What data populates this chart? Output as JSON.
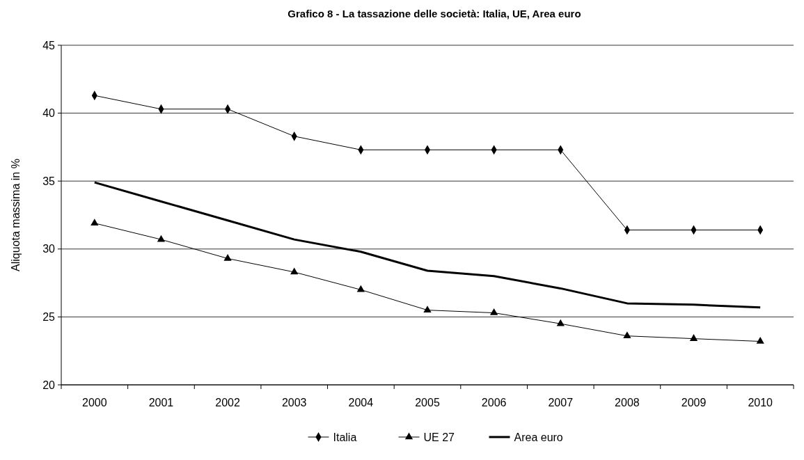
{
  "chart_data": {
    "type": "line",
    "title": "Grafico 8 - La tassazione delle società: Italia, UE, Area euro",
    "ylabel": "Aliquota massima in %",
    "categories": [
      "2000",
      "2001",
      "2002",
      "2003",
      "2004",
      "2005",
      "2006",
      "2007",
      "2008",
      "2009",
      "2010"
    ],
    "ylim": [
      20,
      45
    ],
    "yticks": [
      20,
      25,
      30,
      35,
      40,
      45
    ],
    "grid": "y",
    "legend": "bottom",
    "series": [
      {
        "name": "Italia",
        "color": "#000000",
        "marker": "diamond",
        "values": [
          41.3,
          40.3,
          40.3,
          38.3,
          37.3,
          37.3,
          37.3,
          37.3,
          31.4,
          31.4,
          31.4
        ]
      },
      {
        "name": "UE 27",
        "color": "#000000",
        "marker": "triangle",
        "values": [
          31.9,
          30.7,
          29.3,
          28.3,
          27.0,
          25.5,
          25.3,
          24.5,
          23.6,
          23.4,
          23.2
        ]
      },
      {
        "name": "Area euro",
        "color": "#000000",
        "marker": "none",
        "values": [
          34.9,
          33.5,
          32.1,
          30.7,
          29.8,
          28.4,
          28.0,
          27.1,
          26.0,
          25.9,
          25.7
        ]
      }
    ]
  }
}
